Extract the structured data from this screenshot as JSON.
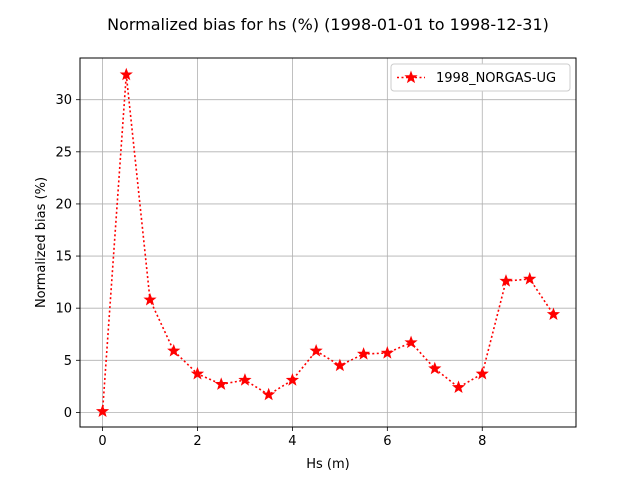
{
  "chart_data": {
    "type": "line",
    "title": "Normalized bias for hs (%) (1998-01-01 to 1998-12-31)",
    "xlabel": "Hs (m)",
    "ylabel": "Normalized bias (%)",
    "xlim": [
      -0.475,
      9.975
    ],
    "ylim": [
      -1.4,
      34.0
    ],
    "xticks": [
      0,
      2,
      4,
      6,
      8
    ],
    "yticks": [
      0,
      5,
      10,
      15,
      20,
      25,
      30
    ],
    "grid": true,
    "legend_position": "top-right",
    "series": [
      {
        "name": "1998_NORGAS-UG",
        "color": "#ff0000",
        "line_style": "dotted",
        "marker": "star",
        "x": [
          0,
          0.5,
          1.0,
          1.5,
          2.0,
          2.5,
          3.0,
          3.5,
          4.0,
          4.5,
          5.0,
          5.5,
          6.0,
          6.5,
          7.0,
          7.5,
          8.0,
          8.5,
          9.0,
          9.5
        ],
        "y": [
          0.1,
          32.4,
          10.8,
          5.9,
          3.7,
          2.7,
          3.1,
          1.7,
          3.1,
          5.9,
          4.5,
          5.6,
          5.7,
          6.7,
          4.2,
          2.4,
          3.7,
          12.6,
          12.8,
          9.4
        ]
      }
    ]
  }
}
